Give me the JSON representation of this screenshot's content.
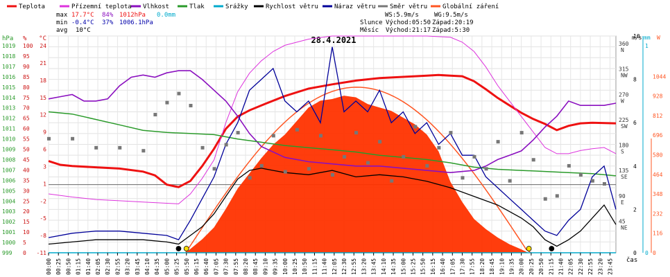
{
  "legend": [
    {
      "label": "Teplota",
      "color": "#ee1111"
    },
    {
      "label": "Přízemní teplota",
      "color": "#dd33dd"
    },
    {
      "label": "Vlhkost",
      "color": "#8a0fbf"
    },
    {
      "label": "Tlak",
      "color": "#2a9a2a"
    },
    {
      "label": "Srážky",
      "color": "#00aacc"
    },
    {
      "label": "Rychlost větru",
      "color": "#000000"
    },
    {
      "label": "Náraz větru",
      "color": "#000099"
    },
    {
      "label": "Směr větru",
      "color": "#777777"
    },
    {
      "label": "Globální záření",
      "color": "#ff5522"
    }
  ],
  "stats": {
    "max": {
      "label": "max",
      "temp": "17.7°C",
      "hum": "84%",
      "press": "1012hPa",
      "rain": "0.0mm"
    },
    "min": {
      "label": "min",
      "temp": "-0.4°C",
      "hum": "37%",
      "press": "1006.1hPa"
    },
    "avg": {
      "label": "avg",
      "temp": "10°C"
    }
  },
  "astro": {
    "wind_speed": "WS:5.9m/s",
    "gust": "WG:9.5m/s",
    "sun_label": "Slunce",
    "sun_rise": "Východ:05:50",
    "sun_set": "Západ:20:19",
    "moon_label": "Měsíc",
    "moon_rise": "Východ:21:17",
    "moon_set": "Západ:5:30"
  },
  "chart_data": {
    "type": "line",
    "title": "28.4.2021",
    "xlabel": "čas",
    "x_ticks": [
      "00:00",
      "00:25",
      "00:50",
      "01:15",
      "01:40",
      "02:05",
      "02:30",
      "02:55",
      "03:20",
      "03:45",
      "04:10",
      "04:35",
      "05:00",
      "05:25",
      "05:50",
      "06:15",
      "06:40",
      "07:05",
      "07:30",
      "07:55",
      "08:20",
      "08:45",
      "09:10",
      "09:35",
      "10:00",
      "10:25",
      "10:50",
      "11:15",
      "11:40",
      "12:05",
      "12:30",
      "12:55",
      "13:20",
      "13:45",
      "14:10",
      "14:35",
      "15:00",
      "15:25",
      "15:50",
      "16:15",
      "16:40",
      "17:05",
      "17:30",
      "17:55",
      "18:20",
      "18:45",
      "19:10",
      "19:35",
      "20:00",
      "20:25",
      "20:50",
      "21:15",
      "21:40",
      "22:05",
      "22:30",
      "22:55",
      "23:20",
      "23:45"
    ],
    "axes": {
      "pressure": {
        "unit": "hPa",
        "ticks": [
          "1019",
          "1018",
          "1017",
          "1016",
          "1015",
          "1014",
          "1013",
          "1012",
          "1011",
          "1010",
          "1009",
          "1008",
          "1007",
          "1006",
          "1005",
          "1004",
          "1003",
          "1002",
          "1001",
          "1000",
          "999"
        ],
        "range": [
          999,
          1019
        ]
      },
      "humidity": {
        "unit": "%",
        "ticks": [
          "100",
          "95",
          "90",
          "85",
          "80",
          "75",
          "70",
          "65",
          "60",
          "55",
          "50",
          "45",
          "40",
          "35",
          "30",
          "25",
          "20",
          "15",
          "10",
          "5",
          "0"
        ],
        "range": [
          0,
          100
        ]
      },
      "temperature": {
        "unit": "°C",
        "ticks": [
          "24",
          "21",
          "18",
          "15",
          "12",
          "9",
          "6",
          "3",
          "1",
          "-2",
          "-5",
          "-8",
          "-11"
        ],
        "range": [
          -11,
          24
        ]
      },
      "direction": {
        "ticks": [
          "360 N",
          "315 NW",
          "270 W",
          "225 SW",
          "180 S",
          "135 SE",
          "90 E",
          "45 NE"
        ],
        "range": [
          0,
          360
        ]
      },
      "wind": {
        "unit": "m/s",
        "ticks": [
          "10",
          "8",
          "6",
          "4",
          "2",
          "0"
        ],
        "range": [
          0,
          10
        ]
      },
      "rain": {
        "unit": "mm",
        "ticks": [
          "1",
          "0"
        ],
        "range": [
          0,
          1
        ]
      },
      "radiation": {
        "unit": "W",
        "ticks": [
          "1044",
          "928",
          "812",
          "696",
          "580",
          "464",
          "348",
          "232",
          "116",
          "0"
        ],
        "range": [
          0,
          1044
        ]
      }
    },
    "series": [
      {
        "name": "Teplota",
        "axis": "temperature",
        "color": "#ee1111",
        "x": [
          0,
          0.5,
          1,
          2,
          3,
          4,
          4.5,
          5,
          5.5,
          6,
          6.5,
          7,
          7.5,
          8,
          8.5,
          9,
          10,
          11,
          12,
          13,
          14,
          15,
          16,
          16.5,
          17,
          17.5,
          18,
          18.5,
          19,
          19.5,
          20,
          20.5,
          21,
          21.5,
          22,
          22.5,
          23,
          24
        ],
        "y": [
          3.8,
          3.2,
          3.0,
          2.8,
          2.6,
          2.1,
          1.5,
          0.0,
          -0.4,
          0.6,
          3.0,
          5.8,
          9.0,
          11.0,
          12.0,
          12.8,
          14.3,
          15.5,
          16.2,
          16.8,
          17.2,
          17.4,
          17.6,
          17.7,
          17.6,
          17.5,
          16.7,
          15.4,
          14.0,
          12.8,
          11.6,
          10.6,
          9.8,
          8.8,
          9.5,
          9.9,
          10.0,
          9.9
        ]
      },
      {
        "name": "Přízemní teplota",
        "axis": "temperature",
        "color": "#dd33dd",
        "x": [
          0,
          1,
          2,
          3,
          4,
          5,
          5.5,
          6,
          6.5,
          7,
          7.5,
          8,
          8.5,
          9,
          9.5,
          10,
          11,
          12,
          13,
          14,
          15,
          16,
          17,
          17.5,
          18,
          18.5,
          19,
          19.5,
          20,
          20.5,
          21,
          21.5,
          22,
          22.5,
          23,
          23.5,
          24
        ],
        "y": [
          -1.5,
          -2.0,
          -2.4,
          -2.6,
          -2.8,
          -3.0,
          -3.1,
          -1.5,
          1.0,
          4.0,
          10.0,
          15.0,
          18.0,
          20.0,
          21.5,
          22.5,
          23.5,
          24.0,
          24.0,
          24.0,
          24.0,
          24.0,
          23.8,
          23.0,
          21.5,
          19.0,
          16.0,
          13.5,
          11.0,
          8.5,
          6.0,
          5.0,
          5.0,
          5.5,
          5.8,
          6.0,
          5.0
        ]
      },
      {
        "name": "Vlhkost",
        "axis": "humidity",
        "color": "#8a0fbf",
        "x": [
          0,
          0.5,
          1,
          1.5,
          2,
          2.5,
          3,
          3.5,
          4,
          4.5,
          5,
          5.5,
          6,
          6.5,
          7,
          7.5,
          8,
          8.5,
          9,
          10,
          11,
          12,
          13,
          14,
          15,
          16,
          17,
          18,
          18.5,
          19,
          19.5,
          20,
          20.5,
          21,
          21.5,
          22,
          22.5,
          23,
          23.5,
          24
        ],
        "y": [
          71,
          72,
          73,
          70,
          70,
          71,
          77,
          81,
          82,
          81,
          83,
          84,
          84,
          80,
          75,
          70,
          63,
          55,
          49,
          44,
          42,
          41,
          40,
          40,
          39,
          38,
          37,
          38,
          40,
          43,
          45,
          47,
          52,
          58,
          63,
          70,
          68,
          68,
          68,
          69
        ]
      },
      {
        "name": "Tlak",
        "axis": "pressure",
        "color": "#2a9a2a",
        "x": [
          0,
          1,
          2,
          3,
          4,
          5,
          6,
          7,
          8,
          9,
          10,
          11,
          12,
          13,
          14,
          15,
          16,
          17,
          18,
          19,
          20,
          21,
          22,
          23,
          24
        ],
        "y": [
          1012.0,
          1011.8,
          1011.3,
          1010.8,
          1010.3,
          1010.1,
          1010.0,
          1009.9,
          1009.5,
          1009.2,
          1008.9,
          1008.7,
          1008.5,
          1008.3,
          1008.0,
          1007.8,
          1007.6,
          1007.3,
          1006.9,
          1006.7,
          1006.6,
          1006.5,
          1006.4,
          1006.3,
          1006.1
        ]
      },
      {
        "name": "Rychlost větru",
        "axis": "wind",
        "color": "#000000",
        "x": [
          0,
          1,
          2,
          3,
          4,
          5,
          5.5,
          6,
          6.5,
          7,
          7.5,
          8,
          8.5,
          9,
          9.5,
          10,
          11,
          12,
          13,
          14,
          15,
          16,
          17,
          18,
          19,
          20,
          20.5,
          21,
          21.5,
          22,
          22.5,
          23,
          23.5,
          24
        ],
        "y": [
          0.4,
          0.5,
          0.6,
          0.6,
          0.6,
          0.5,
          0.4,
          0.8,
          1.2,
          1.8,
          2.6,
          3.4,
          3.8,
          3.9,
          3.8,
          3.7,
          3.6,
          3.8,
          3.5,
          3.6,
          3.5,
          3.3,
          3.0,
          2.6,
          2.2,
          1.6,
          1.2,
          0.6,
          0.3,
          0.6,
          1.0,
          1.6,
          2.2,
          1.3
        ]
      },
      {
        "name": "Náraz větru",
        "axis": "wind",
        "color": "#000099",
        "x": [
          0,
          1,
          2,
          3,
          4,
          5,
          5.5,
          6,
          6.5,
          7,
          7.5,
          8,
          8.5,
          9,
          9.5,
          10,
          10.5,
          11,
          11.5,
          12,
          12.5,
          13,
          13.5,
          14,
          14.5,
          15,
          15.5,
          16,
          16.5,
          17,
          17.5,
          18,
          18.5,
          19,
          19.5,
          20,
          20.5,
          21,
          21.5,
          22,
          22.5,
          23,
          23.5,
          24
        ],
        "y": [
          0.7,
          0.9,
          1.0,
          1.0,
          0.9,
          0.8,
          0.6,
          1.5,
          2.5,
          3.5,
          5.0,
          6.0,
          7.5,
          8.0,
          8.5,
          7.0,
          6.5,
          7.0,
          6.0,
          9.5,
          6.5,
          7.0,
          6.5,
          7.5,
          6.0,
          6.5,
          5.5,
          6.0,
          5.0,
          5.5,
          4.5,
          4.5,
          3.5,
          3.0,
          2.5,
          2.0,
          1.5,
          1.0,
          0.8,
          1.5,
          2.0,
          3.5,
          4.0,
          2.0
        ]
      },
      {
        "name": "Směr větru",
        "axis": "direction",
        "color": "#777777",
        "x": [
          0,
          1,
          2,
          3,
          4,
          4.5,
          5,
          5.5,
          6,
          6.5,
          7,
          7.5,
          8,
          8.5,
          9,
          9.5,
          10,
          10.5,
          11,
          11.5,
          12,
          12.5,
          13,
          13.5,
          14,
          14.5,
          15,
          15.5,
          16,
          16.5,
          17,
          17.5,
          18,
          18.5,
          19,
          19.5,
          20,
          20.5,
          21,
          21.5,
          22,
          22.5,
          23,
          23.5
        ],
        "y": [
          190,
          190,
          175,
          175,
          170,
          230,
          250,
          265,
          245,
          175,
          140,
          180,
          200,
          125,
          145,
          195,
          135,
          205,
          140,
          195,
          130,
          160,
          200,
          150,
          185,
          120,
          160,
          210,
          145,
          175,
          200,
          125,
          160,
          140,
          185,
          120,
          200,
          155,
          90,
          95,
          145,
          130,
          120,
          115
        ]
      },
      {
        "name": "Globální záření",
        "axis": "radiation",
        "color": "#ff5522",
        "x": [
          5.8,
          6.5,
          7,
          7.5,
          8,
          8.5,
          9,
          9.5,
          10,
          10.5,
          11,
          11.5,
          12,
          12.5,
          13,
          13.5,
          14,
          14.5,
          15,
          15.5,
          16,
          16.5,
          17,
          17.5,
          18,
          18.5,
          19,
          19.5,
          20,
          20.3
        ],
        "y": [
          0,
          80,
          150,
          260,
          380,
          470,
          560,
          640,
          700,
          780,
          860,
          900,
          910,
          930,
          920,
          880,
          860,
          840,
          800,
          760,
          700,
          600,
          420,
          300,
          200,
          140,
          90,
          50,
          20,
          0
        ]
      },
      {
        "name": "Srážky",
        "axis": "rain",
        "color": "#00aacc",
        "x": [
          0,
          24
        ],
        "y": [
          0,
          0
        ]
      }
    ]
  }
}
